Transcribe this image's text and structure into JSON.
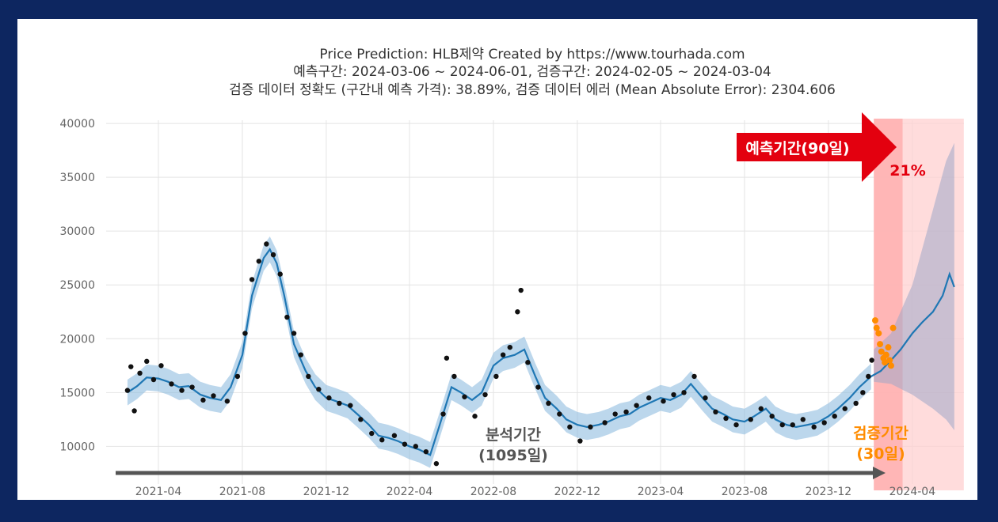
{
  "chart_data": {
    "type": "line",
    "title_lines": [
      "Price Prediction: HLB제약 Created by https://www.tourhada.com",
      "예측구간: 2024-03-06 ~ 2024-06-01, 검증구간: 2024-02-05 ~ 2024-03-04",
      "검증 데이터 정확도 (구간내 예측 가격): 38.89%, 검증 데이터 에러 (Mean Absolute Error): 2304.606"
    ],
    "ylim": [
      6500,
      40300
    ],
    "xlim": [
      "2021-01-15",
      "2024-06-15"
    ],
    "y_ticks": [
      10000,
      15000,
      20000,
      25000,
      30000,
      35000,
      40000
    ],
    "y_tick_labels": [
      "10000",
      "15000",
      "20000",
      "25000",
      "30000",
      "35000",
      "40000"
    ],
    "x_ticks": [
      "2021-04-01",
      "2021-08-01",
      "2021-12-01",
      "2022-04-01",
      "2022-08-01",
      "2022-12-01",
      "2023-04-01",
      "2023-08-01",
      "2023-12-01",
      "2024-04-01"
    ],
    "x_tick_labels": [
      "2021-04",
      "2021-08",
      "2021-12",
      "2022-04",
      "2022-08",
      "2022-12",
      "2023-04",
      "2023-08",
      "2023-12",
      "2024-04"
    ],
    "grid": true,
    "series": [
      {
        "name": "forecast",
        "color": "#1f77b4",
        "band_color": "#8fbde0",
        "points": [
          [
            "2021-02-15",
            15000
          ],
          [
            "2021-03-01",
            15600
          ],
          [
            "2021-03-15",
            16400
          ],
          [
            "2021-04-01",
            16300
          ],
          [
            "2021-04-15",
            16000
          ],
          [
            "2021-05-01",
            15500
          ],
          [
            "2021-05-15",
            15600
          ],
          [
            "2021-06-01",
            14800
          ],
          [
            "2021-06-15",
            14500
          ],
          [
            "2021-07-01",
            14300
          ],
          [
            "2021-07-15",
            15500
          ],
          [
            "2021-08-01",
            18500
          ],
          [
            "2021-08-15",
            24000
          ],
          [
            "2021-09-01",
            27500
          ],
          [
            "2021-09-10",
            28300
          ],
          [
            "2021-09-20",
            27000
          ],
          [
            "2021-10-01",
            24000
          ],
          [
            "2021-10-15",
            19500
          ],
          [
            "2021-11-01",
            17000
          ],
          [
            "2021-11-15",
            15500
          ],
          [
            "2021-12-01",
            14500
          ],
          [
            "2021-12-15",
            14200
          ],
          [
            "2022-01-01",
            13800
          ],
          [
            "2022-01-15",
            13000
          ],
          [
            "2022-02-01",
            12000
          ],
          [
            "2022-02-15",
            11000
          ],
          [
            "2022-03-01",
            10800
          ],
          [
            "2022-03-15",
            10500
          ],
          [
            "2022-04-01",
            10000
          ],
          [
            "2022-04-15",
            9700
          ],
          [
            "2022-05-01",
            9200
          ],
          [
            "2022-05-15",
            12000
          ],
          [
            "2022-06-01",
            15500
          ],
          [
            "2022-06-15",
            15000
          ],
          [
            "2022-07-01",
            14300
          ],
          [
            "2022-07-15",
            15000
          ],
          [
            "2022-08-01",
            17500
          ],
          [
            "2022-08-15",
            18200
          ],
          [
            "2022-09-01",
            18500
          ],
          [
            "2022-09-15",
            19000
          ],
          [
            "2022-10-01",
            16500
          ],
          [
            "2022-10-15",
            14500
          ],
          [
            "2022-11-01",
            13500
          ],
          [
            "2022-11-15",
            12500
          ],
          [
            "2022-12-01",
            12000
          ],
          [
            "2022-12-15",
            11800
          ],
          [
            "2023-01-01",
            12000
          ],
          [
            "2023-01-15",
            12300
          ],
          [
            "2023-02-01",
            12800
          ],
          [
            "2023-02-15",
            13000
          ],
          [
            "2023-03-01",
            13600
          ],
          [
            "2023-03-15",
            14000
          ],
          [
            "2023-04-01",
            14500
          ],
          [
            "2023-04-15",
            14300
          ],
          [
            "2023-05-01",
            14800
          ],
          [
            "2023-05-15",
            15800
          ],
          [
            "2023-06-01",
            14500
          ],
          [
            "2023-06-15",
            13500
          ],
          [
            "2023-07-01",
            13000
          ],
          [
            "2023-07-15",
            12500
          ],
          [
            "2023-08-01",
            12300
          ],
          [
            "2023-08-15",
            12800
          ],
          [
            "2023-09-01",
            13500
          ],
          [
            "2023-09-15",
            12500
          ],
          [
            "2023-10-01",
            12000
          ],
          [
            "2023-10-15",
            11800
          ],
          [
            "2023-11-01",
            12000
          ],
          [
            "2023-11-15",
            12200
          ],
          [
            "2023-12-01",
            12800
          ],
          [
            "2023-12-15",
            13500
          ],
          [
            "2024-01-01",
            14500
          ],
          [
            "2024-01-15",
            15500
          ],
          [
            "2024-02-01",
            16500
          ],
          [
            "2024-02-15",
            17000
          ],
          [
            "2024-03-01",
            18000
          ],
          [
            "2024-03-15",
            19000
          ],
          [
            "2024-04-01",
            20500
          ],
          [
            "2024-04-15",
            21500
          ],
          [
            "2024-05-01",
            22500
          ],
          [
            "2024-05-15",
            24000
          ],
          [
            "2024-05-25",
            26000
          ],
          [
            "2024-06-01",
            24800
          ]
        ],
        "band_upper": [
          [
            "2024-02-05",
            19000
          ],
          [
            "2024-03-01",
            20500
          ],
          [
            "2024-04-01",
            25000
          ],
          [
            "2024-05-01",
            32000
          ],
          [
            "2024-05-20",
            36500
          ],
          [
            "2024-06-01",
            38200
          ]
        ],
        "band_lower": [
          [
            "2024-02-05",
            16000
          ],
          [
            "2024-03-01",
            15800
          ],
          [
            "2024-04-01",
            14800
          ],
          [
            "2024-05-01",
            13500
          ],
          [
            "2024-05-20",
            12500
          ],
          [
            "2024-06-01",
            11500
          ]
        ]
      },
      {
        "name": "actual",
        "color": "#111111",
        "points": [
          [
            "2021-02-15",
            15200
          ],
          [
            "2021-02-20",
            17400
          ],
          [
            "2021-02-25",
            13300
          ],
          [
            "2021-03-05",
            16800
          ],
          [
            "2021-03-15",
            17900
          ],
          [
            "2021-03-25",
            16200
          ],
          [
            "2021-04-05",
            17500
          ],
          [
            "2021-04-20",
            15800
          ],
          [
            "2021-05-05",
            15200
          ],
          [
            "2021-05-20",
            15500
          ],
          [
            "2021-06-05",
            14300
          ],
          [
            "2021-06-20",
            14700
          ],
          [
            "2021-07-10",
            14200
          ],
          [
            "2021-07-25",
            16500
          ],
          [
            "2021-08-05",
            20500
          ],
          [
            "2021-08-15",
            25500
          ],
          [
            "2021-08-25",
            27200
          ],
          [
            "2021-09-05",
            28800
          ],
          [
            "2021-09-15",
            27800
          ],
          [
            "2021-09-25",
            26000
          ],
          [
            "2021-10-05",
            22000
          ],
          [
            "2021-10-15",
            20500
          ],
          [
            "2021-10-25",
            18500
          ],
          [
            "2021-11-05",
            16500
          ],
          [
            "2021-11-20",
            15300
          ],
          [
            "2021-12-05",
            14500
          ],
          [
            "2021-12-20",
            14000
          ],
          [
            "2022-01-05",
            13800
          ],
          [
            "2022-01-20",
            12500
          ],
          [
            "2022-02-05",
            11200
          ],
          [
            "2022-02-20",
            10600
          ],
          [
            "2022-03-10",
            11000
          ],
          [
            "2022-03-25",
            10200
          ],
          [
            "2022-04-10",
            10000
          ],
          [
            "2022-04-25",
            9500
          ],
          [
            "2022-05-10",
            8400
          ],
          [
            "2022-05-20",
            13000
          ],
          [
            "2022-05-25",
            18200
          ],
          [
            "2022-06-05",
            16500
          ],
          [
            "2022-06-20",
            14600
          ],
          [
            "2022-07-05",
            12800
          ],
          [
            "2022-07-20",
            14800
          ],
          [
            "2022-08-05",
            16500
          ],
          [
            "2022-08-15",
            18500
          ],
          [
            "2022-08-25",
            19200
          ],
          [
            "2022-09-05",
            22500
          ],
          [
            "2022-09-10",
            24500
          ],
          [
            "2022-09-20",
            17800
          ],
          [
            "2022-10-05",
            15500
          ],
          [
            "2022-10-20",
            14000
          ],
          [
            "2022-11-05",
            13000
          ],
          [
            "2022-11-20",
            11800
          ],
          [
            "2022-12-05",
            10500
          ],
          [
            "2022-12-20",
            11800
          ],
          [
            "2023-01-10",
            12200
          ],
          [
            "2023-01-25",
            13000
          ],
          [
            "2023-02-10",
            13200
          ],
          [
            "2023-02-25",
            13800
          ],
          [
            "2023-03-15",
            14500
          ],
          [
            "2023-04-05",
            14200
          ],
          [
            "2023-04-20",
            14800
          ],
          [
            "2023-05-05",
            15000
          ],
          [
            "2023-05-20",
            16500
          ],
          [
            "2023-06-05",
            14500
          ],
          [
            "2023-06-20",
            13200
          ],
          [
            "2023-07-05",
            12600
          ],
          [
            "2023-07-20",
            12000
          ],
          [
            "2023-08-10",
            12500
          ],
          [
            "2023-08-25",
            13500
          ],
          [
            "2023-09-10",
            12800
          ],
          [
            "2023-09-25",
            12000
          ],
          [
            "2023-10-10",
            12000
          ],
          [
            "2023-10-25",
            12500
          ],
          [
            "2023-11-10",
            11800
          ],
          [
            "2023-11-25",
            12200
          ],
          [
            "2023-12-10",
            12800
          ],
          [
            "2023-12-25",
            13500
          ],
          [
            "2024-01-10",
            14000
          ],
          [
            "2024-01-20",
            15000
          ],
          [
            "2024-01-28",
            16500
          ],
          [
            "2024-02-02",
            18000
          ]
        ]
      },
      {
        "name": "validation_actual",
        "color": "#ff8c00",
        "points": [
          [
            "2024-02-07",
            21700
          ],
          [
            "2024-02-09",
            21000
          ],
          [
            "2024-02-12",
            20500
          ],
          [
            "2024-02-14",
            19500
          ],
          [
            "2024-02-16",
            18800
          ],
          [
            "2024-02-19",
            18200
          ],
          [
            "2024-02-21",
            17800
          ],
          [
            "2024-02-23",
            18500
          ],
          [
            "2024-02-26",
            19200
          ],
          [
            "2024-02-28",
            18000
          ],
          [
            "2024-03-01",
            17500
          ],
          [
            "2024-03-04",
            21000
          ]
        ]
      }
    ],
    "regions": [
      {
        "name": "forecast_period",
        "start": "2024-02-05",
        "end": "2024-06-01",
        "color": "#ffd0d0"
      },
      {
        "name": "validation_period",
        "start": "2024-02-05",
        "end": "2024-03-04",
        "color": "#ffaaaa"
      }
    ],
    "annotations": {
      "forecast_label": "예측기간(90일)",
      "forecast_pct": "21%",
      "analysis_label_1": "분석기간",
      "analysis_label_2": "(1095일)",
      "validation_label_1": "검증기간",
      "validation_label_2": "(30일)"
    },
    "colors": {
      "frame": "#0d2660",
      "forecast_arrow": "#e3000f",
      "analysis_text": "#555555",
      "validation_text": "#ff8c00"
    }
  }
}
